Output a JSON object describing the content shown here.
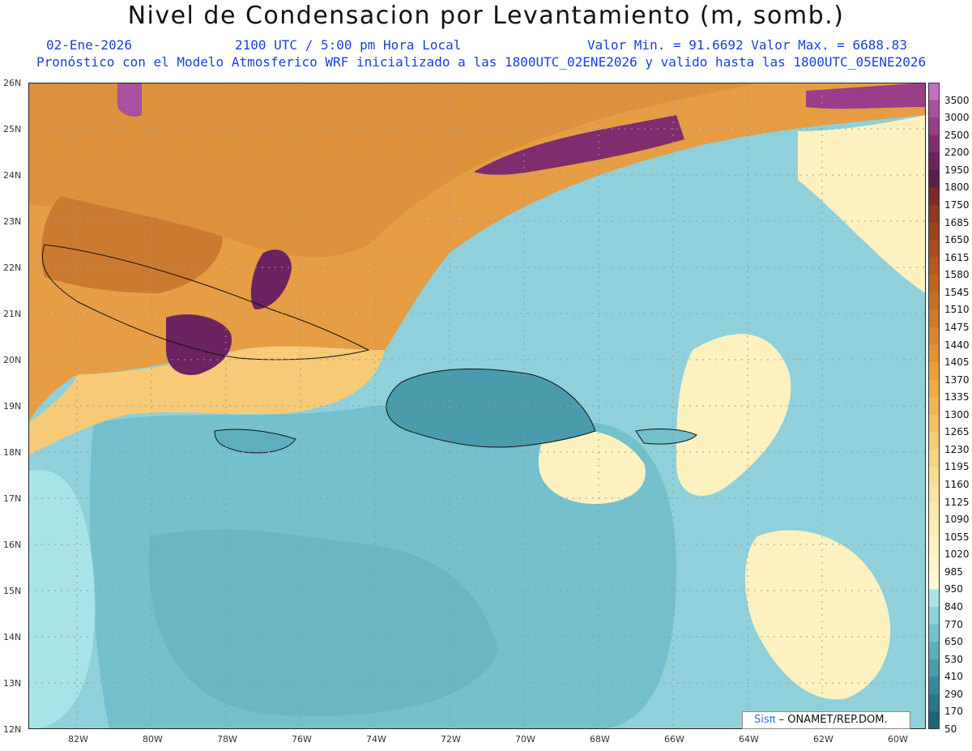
{
  "header": {
    "title": "Nivel de Condensacion por Levantamiento (m, somb.)",
    "date": "02-Ene-2026",
    "time": "2100 UTC / 5:00 pm Hora Local",
    "minmax": "Valor Min. = 91.6692  Valor Max. = 6688.83",
    "description": "Pronóstico con el Modelo Atmosferico WRF inicializado a las 1800UTC_02ENE2026 y valido hasta las  1800UTC_05ENE2026"
  },
  "axes": {
    "lat_labels": [
      "26N",
      "25N",
      "24N",
      "23N",
      "22N",
      "21N",
      "20N",
      "19N",
      "18N",
      "17N",
      "16N",
      "15N",
      "14N",
      "13N",
      "12N"
    ],
    "lon_labels": [
      "82W",
      "80W",
      "78W",
      "76W",
      "74W",
      "72W",
      "70W",
      "68W",
      "66W",
      "64W",
      "62W",
      "60W"
    ]
  },
  "legend": {
    "levels": [
      "3500",
      "3000",
      "2500",
      "2200",
      "1950",
      "1800",
      "1750",
      "1685",
      "1650",
      "1615",
      "1580",
      "1545",
      "1510",
      "1475",
      "1440",
      "1405",
      "1370",
      "1335",
      "1300",
      "1265",
      "1230",
      "1195",
      "1160",
      "1125",
      "1090",
      "1055",
      "1020",
      "985",
      "950",
      "840",
      "770",
      "650",
      "530",
      "410",
      "290",
      "170",
      "50"
    ],
    "colors": [
      "#c66fc6",
      "#a9509f",
      "#9a3d8a",
      "#7f2d6f",
      "#6b2460",
      "#5c1e4b",
      "#7a2a2a",
      "#8c3a22",
      "#9a441f",
      "#a84e20",
      "#b25a22",
      "#bc6426",
      "#c46e2b",
      "#cc7a30",
      "#d68636",
      "#de913c",
      "#e69d44",
      "#eda94e",
      "#f0b55a",
      "#f3c068",
      "#f6ca76",
      "#f8d385",
      "#f9db93",
      "#fae2a0",
      "#fbe8ab",
      "#fcedb5",
      "#fdf2bf",
      "#fef5c8",
      "#fff8d0",
      "#a8e3ea",
      "#8ed2dc",
      "#74c0cc",
      "#5eaebd",
      "#4a9bac",
      "#38889b",
      "#2a768a",
      "#1f6579"
    ]
  },
  "credit": {
    "brand": "Sisπ",
    "org": "– ONAMET/REP.DOM."
  }
}
